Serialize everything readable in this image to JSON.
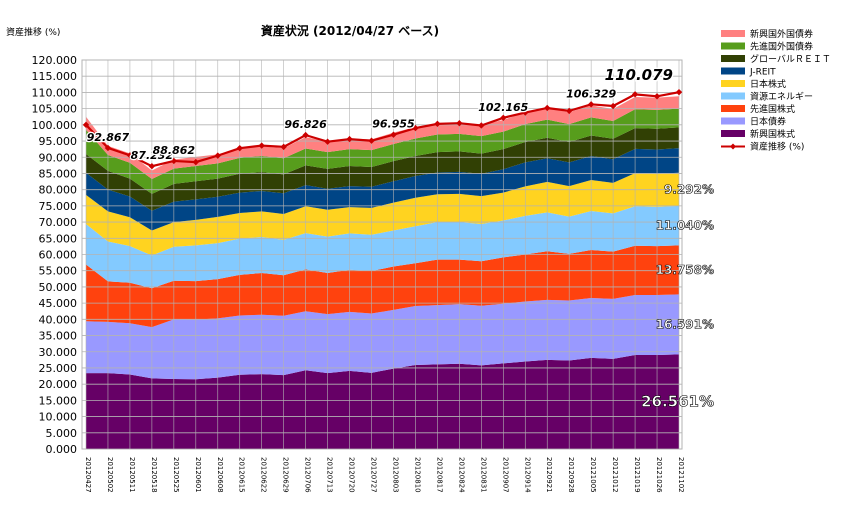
{
  "chart_data": {
    "type": "area",
    "title": "資産状況 (2012/04/27 ベース)",
    "ylabel": "資産推移 (%)",
    "ylim": [
      0,
      120
    ],
    "ytick_step": 5,
    "grid": true,
    "legend_position": "right",
    "categories": [
      "2012/04/27",
      "2012/05/02",
      "2012/05/11",
      "2012/05/18",
      "2012/05/25",
      "2012/06/01",
      "2012/06/08",
      "2012/06/15",
      "2012/06/22",
      "2012/06/29",
      "2012/07/06",
      "2012/07/13",
      "2012/07/20",
      "2012/07/27",
      "2012/08/03",
      "2012/08/10",
      "2012/08/17",
      "2012/08/24",
      "2012/08/31",
      "2012/09/07",
      "2012/09/14",
      "2012/09/21",
      "2012/09/28",
      "2012/10/05",
      "2012/10/12",
      "2012/10/19",
      "2012/10/26",
      "2012/11/02"
    ],
    "series": [
      {
        "name": "新興国株式",
        "color": "#660066",
        "values": [
          23.4,
          23.4,
          23.0,
          21.8,
          21.6,
          21.5,
          22.0,
          22.9,
          23.1,
          22.8,
          24.3,
          23.4,
          24.1,
          23.5,
          24.8,
          25.9,
          26.1,
          26.3,
          25.8,
          26.4,
          27.0,
          27.5,
          27.3,
          28.1,
          27.8,
          29.0,
          29.0,
          29.2
        ]
      },
      {
        "name": "日本債券",
        "color": "#9999ff",
        "values": [
          16.0,
          15.8,
          15.8,
          15.8,
          18.4,
          18.4,
          18.3,
          18.3,
          18.3,
          18.3,
          18.2,
          18.2,
          18.2,
          18.3,
          18.1,
          18.2,
          18.3,
          18.4,
          18.4,
          18.4,
          18.5,
          18.5,
          18.5,
          18.5,
          18.5,
          18.5,
          18.5,
          18.5
        ]
      },
      {
        "name": "先進国株式",
        "color": "#ff420e",
        "values": [
          17.5,
          12.5,
          12.5,
          12.0,
          11.9,
          11.9,
          12.1,
          12.5,
          12.9,
          12.5,
          12.9,
          12.7,
          13.0,
          13.1,
          13.4,
          13.2,
          14.0,
          13.7,
          13.7,
          14.3,
          14.5,
          15.0,
          14.4,
          14.8,
          14.6,
          15.2,
          15.1,
          15.1
        ]
      },
      {
        "name": "資源エネルギー",
        "color": "#83caff",
        "values": [
          12.5,
          12.3,
          11.3,
          10.1,
          10.5,
          11.0,
          11.1,
          11.2,
          11.1,
          10.9,
          11.2,
          11.2,
          11.2,
          11.2,
          11.1,
          11.4,
          11.6,
          11.6,
          11.5,
          11.4,
          11.9,
          12.0,
          11.5,
          12.0,
          11.8,
          12.2,
          12.1,
          12.2
        ]
      },
      {
        "name": "日本株式",
        "color": "#ffd320",
        "values": [
          9.0,
          9.3,
          8.9,
          7.7,
          7.6,
          7.9,
          8.1,
          7.9,
          7.9,
          8.0,
          8.3,
          8.3,
          8.1,
          8.3,
          8.6,
          8.8,
          8.6,
          8.7,
          8.6,
          8.6,
          9.1,
          9.4,
          9.4,
          9.6,
          9.4,
          10.2,
          10.2,
          10.2
        ]
      },
      {
        "name": "J-REIT",
        "color": "#004586",
        "values": [
          6.8,
          6.7,
          6.4,
          6.1,
          6.3,
          6.3,
          6.2,
          6.3,
          6.3,
          6.4,
          6.5,
          6.5,
          6.5,
          6.5,
          6.6,
          6.7,
          6.7,
          6.8,
          6.9,
          7.2,
          7.4,
          7.3,
          7.3,
          7.4,
          7.3,
          7.5,
          7.5,
          7.6
        ]
      },
      {
        "name": "グローバルＲＥＩＴ",
        "color": "#314004",
        "values": [
          5.8,
          5.8,
          5.5,
          5.2,
          5.5,
          5.6,
          5.6,
          5.8,
          5.8,
          5.8,
          6.1,
          6.1,
          6.2,
          6.1,
          6.2,
          6.2,
          6.3,
          6.3,
          6.2,
          6.2,
          6.3,
          6.3,
          6.3,
          6.3,
          6.3,
          6.4,
          6.4,
          6.4
        ]
      },
      {
        "name": "先進国外国債券",
        "color": "#579d1c",
        "values": [
          7.5,
          4.9,
          4.9,
          4.6,
          4.7,
          4.7,
          4.7,
          4.9,
          5.0,
          5.0,
          5.2,
          5.2,
          5.2,
          5.2,
          5.3,
          5.4,
          5.4,
          5.4,
          5.4,
          5.4,
          5.5,
          5.6,
          5.5,
          5.6,
          5.5,
          5.8,
          5.8,
          5.8
        ]
      },
      {
        "name": "新興国外国債券",
        "color": "#ff8080",
        "values": [
          4.0,
          2.8,
          2.9,
          2.6,
          2.8,
          2.8,
          2.8,
          2.9,
          3.0,
          3.1,
          3.5,
          3.2,
          3.3,
          3.3,
          3.5,
          3.5,
          3.5,
          3.5,
          3.5,
          3.6,
          3.7,
          3.7,
          3.7,
          3.7,
          3.7,
          3.8,
          3.8,
          3.8
        ]
      }
    ],
    "line": {
      "name": "資産推移 (%)",
      "color": "#cc0000",
      "values": [
        100.0,
        92.867,
        90.6,
        87.232,
        88.862,
        88.5,
        90.5,
        92.8,
        93.6,
        93.2,
        96.826,
        94.8,
        95.6,
        95.1,
        96.955,
        99.0,
        100.3,
        100.5,
        99.8,
        102.165,
        103.8,
        105.2,
        104.3,
        106.329,
        105.8,
        109.4,
        108.8,
        110.079
      ]
    },
    "point_labels": [
      {
        "index": 1,
        "text": "92.867"
      },
      {
        "index": 3,
        "text": "87.232"
      },
      {
        "index": 4,
        "text": "88.862"
      },
      {
        "index": 10,
        "text": "96.826"
      },
      {
        "index": 14,
        "text": "96.955"
      },
      {
        "index": 19,
        "text": "102.165"
      },
      {
        "index": 23,
        "text": "106.329"
      },
      {
        "index": 27,
        "text": "110.079"
      }
    ],
    "percent_labels": [
      {
        "series": 0,
        "text": "26.561%"
      },
      {
        "series": 1,
        "text": "16.591%"
      },
      {
        "series": 2,
        "text": "13.758%"
      },
      {
        "series": 3,
        "text": "11.040%"
      },
      {
        "series": 4,
        "text": "9.292%"
      }
    ]
  }
}
